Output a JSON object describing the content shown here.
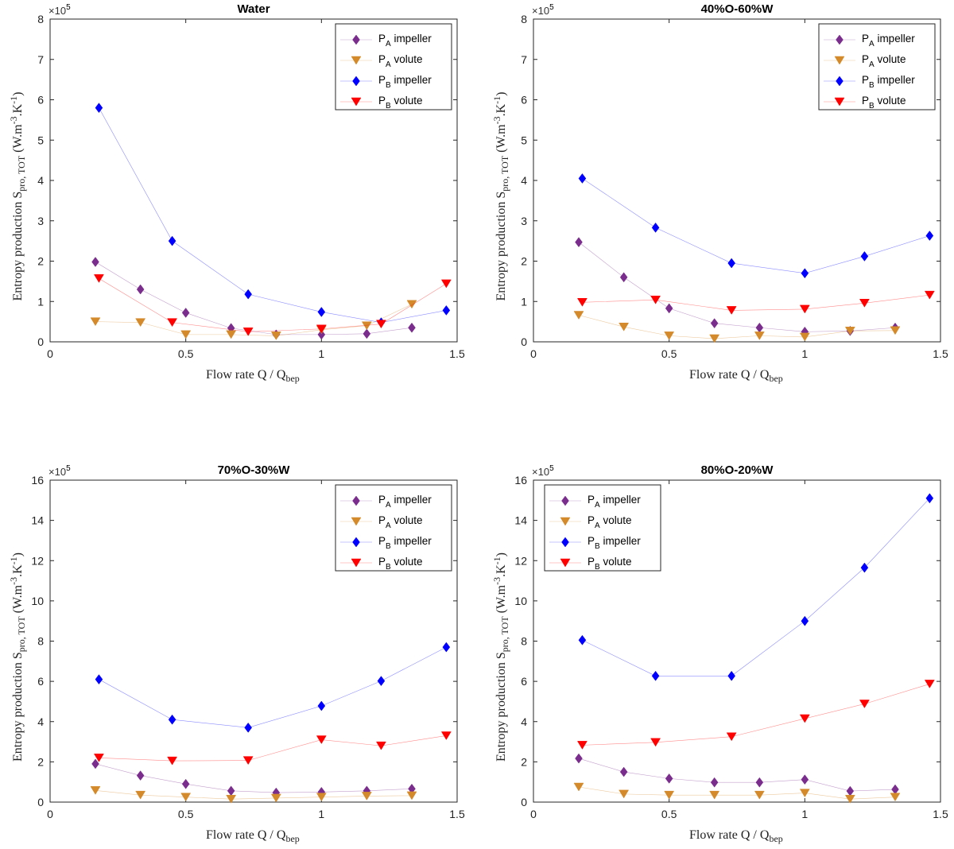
{
  "chart_data": [
    {
      "type": "scatter",
      "title": "Water",
      "xlabel": "Flow rate Q / Q",
      "xlabel_sub": "bep",
      "ylabel": "Entropy production S",
      "ylabel_sub": "pro, TOT",
      "ylabel_units": "(W.m",
      "ylabel_exp1": "-3",
      "ylabel_mid": ".K",
      "ylabel_exp2": "-1",
      "ylabel_close": ")",
      "y_multiplier": "×10",
      "y_multiplier_exp": "5",
      "xlim": [
        0,
        1.5
      ],
      "ylim": [
        0,
        8
      ],
      "xticks": [
        "0",
        "0.5",
        "1",
        "1.5"
      ],
      "yticks": [
        "0",
        "1",
        "2",
        "3",
        "4",
        "5",
        "6",
        "7",
        "8"
      ],
      "legend": "top-right",
      "series": [
        {
          "name": "P",
          "sub": "A",
          "suffix": " impeller",
          "marker": "diamond",
          "color": "#7b2d8e",
          "x": [
            0.167,
            0.333,
            0.5,
            0.667,
            0.833,
            1.0,
            1.167,
            1.333
          ],
          "values": [
            1.98,
            1.3,
            0.72,
            0.34,
            0.18,
            0.18,
            0.2,
            0.35
          ]
        },
        {
          "name": "P",
          "sub": "A",
          "suffix": " volute",
          "marker": "triangle-down",
          "color": "#d4892a",
          "x": [
            0.167,
            0.333,
            0.5,
            0.667,
            0.833,
            1.0,
            1.167,
            1.333
          ],
          "values": [
            0.5,
            0.48,
            0.18,
            0.18,
            0.15,
            0.3,
            0.4,
            0.93
          ]
        },
        {
          "name": "P",
          "sub": "B",
          "suffix": " impeller",
          "marker": "diamond",
          "color": "#0000ff",
          "x": [
            0.18,
            0.45,
            0.73,
            1.0,
            1.22,
            1.46
          ],
          "values": [
            5.8,
            2.5,
            1.18,
            0.74,
            0.48,
            0.78
          ]
        },
        {
          "name": "P",
          "sub": "B",
          "suffix": " volute",
          "marker": "triangle-down",
          "color": "#ff0000",
          "x": [
            0.18,
            0.45,
            0.73,
            1.0,
            1.22,
            1.46
          ],
          "values": [
            1.57,
            0.48,
            0.25,
            0.32,
            0.44,
            1.44
          ]
        }
      ]
    },
    {
      "type": "scatter",
      "title": "40%O-60%W",
      "xlabel": "Flow rate Q / Q",
      "xlabel_sub": "bep",
      "ylabel": "Entropy production S",
      "ylabel_sub": "pro, TOT",
      "ylabel_units": "(W.m",
      "ylabel_exp1": "-3",
      "ylabel_mid": ".K",
      "ylabel_exp2": "-1",
      "ylabel_close": ")",
      "y_multiplier": "×10",
      "y_multiplier_exp": "5",
      "xlim": [
        0,
        1.5
      ],
      "ylim": [
        0,
        8
      ],
      "xticks": [
        "0",
        "0.5",
        "1",
        "1.5"
      ],
      "yticks": [
        "0",
        "1",
        "2",
        "3",
        "4",
        "5",
        "6",
        "7",
        "8"
      ],
      "legend": "top-right",
      "series": [
        {
          "name": "P",
          "sub": "A",
          "suffix": " impeller",
          "marker": "diamond",
          "color": "#7b2d8e",
          "x": [
            0.167,
            0.333,
            0.5,
            0.667,
            0.833,
            1.0,
            1.167,
            1.333
          ],
          "values": [
            2.47,
            1.6,
            0.83,
            0.46,
            0.35,
            0.25,
            0.27,
            0.35
          ]
        },
        {
          "name": "P",
          "sub": "A",
          "suffix": " volute",
          "marker": "triangle-down",
          "color": "#d4892a",
          "x": [
            0.167,
            0.333,
            0.5,
            0.667,
            0.833,
            1.0,
            1.167,
            1.333
          ],
          "values": [
            0.66,
            0.37,
            0.15,
            0.08,
            0.15,
            0.12,
            0.27,
            0.28
          ]
        },
        {
          "name": "P",
          "sub": "B",
          "suffix": " impeller",
          "marker": "diamond",
          "color": "#0000ff",
          "x": [
            0.18,
            0.45,
            0.73,
            1.0,
            1.22,
            1.46
          ],
          "values": [
            4.05,
            2.83,
            1.95,
            1.7,
            2.12,
            2.63
          ]
        },
        {
          "name": "P",
          "sub": "B",
          "suffix": " volute",
          "marker": "triangle-down",
          "color": "#ff0000",
          "x": [
            0.18,
            0.45,
            0.73,
            1.0,
            1.22,
            1.46
          ],
          "values": [
            0.98,
            1.04,
            0.78,
            0.81,
            0.96,
            1.16
          ]
        }
      ]
    },
    {
      "type": "scatter",
      "title": "70%O-30%W",
      "xlabel": "Flow rate Q / Q",
      "xlabel_sub": "bep",
      "ylabel": "Entropy production S",
      "ylabel_sub": "pro, TOT",
      "ylabel_units": "(W.m",
      "ylabel_exp1": "-3",
      "ylabel_mid": ".K",
      "ylabel_exp2": "-1",
      "ylabel_close": ")",
      "y_multiplier": "×10",
      "y_multiplier_exp": "5",
      "xlim": [
        0,
        1.5
      ],
      "ylim": [
        0,
        16
      ],
      "xticks": [
        "0",
        "0.5",
        "1",
        "1.5"
      ],
      "yticks": [
        "0",
        "2",
        "4",
        "6",
        "8",
        "10",
        "12",
        "14",
        "16"
      ],
      "legend": "top-right",
      "series": [
        {
          "name": "P",
          "sub": "A",
          "suffix": " impeller",
          "marker": "diamond",
          "color": "#7b2d8e",
          "x": [
            0.167,
            0.333,
            0.5,
            0.667,
            0.833,
            1.0,
            1.167,
            1.333
          ],
          "values": [
            1.9,
            1.32,
            0.9,
            0.56,
            0.47,
            0.5,
            0.56,
            0.66
          ]
        },
        {
          "name": "P",
          "sub": "A",
          "suffix": " volute",
          "marker": "triangle-down",
          "color": "#d4892a",
          "x": [
            0.167,
            0.333,
            0.5,
            0.667,
            0.833,
            1.0,
            1.167,
            1.333
          ],
          "values": [
            0.58,
            0.35,
            0.25,
            0.15,
            0.2,
            0.25,
            0.3,
            0.32
          ]
        },
        {
          "name": "P",
          "sub": "B",
          "suffix": " impeller",
          "marker": "diamond",
          "color": "#0000ff",
          "x": [
            0.18,
            0.45,
            0.73,
            1.0,
            1.22,
            1.46
          ],
          "values": [
            6.1,
            4.1,
            3.7,
            4.78,
            6.02,
            7.7
          ]
        },
        {
          "name": "P",
          "sub": "B",
          "suffix": " volute",
          "marker": "triangle-down",
          "color": "#ff0000",
          "x": [
            0.18,
            0.45,
            0.73,
            1.0,
            1.22,
            1.46
          ],
          "values": [
            2.2,
            2.05,
            2.07,
            3.1,
            2.8,
            3.3
          ]
        }
      ]
    },
    {
      "type": "scatter",
      "title": "80%O-20%W",
      "xlabel": "Flow rate Q / Q",
      "xlabel_sub": "bep",
      "ylabel": "Entropy production S",
      "ylabel_sub": "pro, TOT",
      "ylabel_units": "(W.m",
      "ylabel_exp1": "-3",
      "ylabel_mid": ".K",
      "ylabel_exp2": "-1",
      "ylabel_close": ")",
      "y_multiplier": "×10",
      "y_multiplier_exp": "5",
      "xlim": [
        0,
        1.5
      ],
      "ylim": [
        0,
        16
      ],
      "xticks": [
        "0",
        "0.5",
        "1",
        "1.5"
      ],
      "yticks": [
        "0",
        "2",
        "4",
        "6",
        "8",
        "10",
        "12",
        "14",
        "16"
      ],
      "legend": "top-left",
      "series": [
        {
          "name": "P",
          "sub": "A",
          "suffix": " impeller",
          "marker": "diamond",
          "color": "#7b2d8e",
          "x": [
            0.167,
            0.333,
            0.5,
            0.667,
            0.833,
            1.0,
            1.167,
            1.333
          ],
          "values": [
            2.17,
            1.5,
            1.17,
            0.98,
            0.98,
            1.12,
            0.55,
            0.63
          ]
        },
        {
          "name": "P",
          "sub": "A",
          "suffix": " volute",
          "marker": "triangle-down",
          "color": "#d4892a",
          "x": [
            0.167,
            0.333,
            0.5,
            0.667,
            0.833,
            1.0,
            1.167,
            1.333
          ],
          "values": [
            0.75,
            0.4,
            0.35,
            0.35,
            0.35,
            0.45,
            0.15,
            0.25
          ]
        },
        {
          "name": "P",
          "sub": "B",
          "suffix": " impeller",
          "marker": "diamond",
          "color": "#0000ff",
          "x": [
            0.18,
            0.45,
            0.73,
            1.0,
            1.22,
            1.46
          ],
          "values": [
            8.05,
            6.27,
            6.27,
            9.0,
            11.65,
            15.1
          ]
        },
        {
          "name": "P",
          "sub": "B",
          "suffix": " volute",
          "marker": "triangle-down",
          "color": "#ff0000",
          "x": [
            0.18,
            0.45,
            0.73,
            1.0,
            1.22,
            1.46
          ],
          "values": [
            2.83,
            2.97,
            3.25,
            4.15,
            4.88,
            5.87
          ]
        }
      ]
    }
  ]
}
